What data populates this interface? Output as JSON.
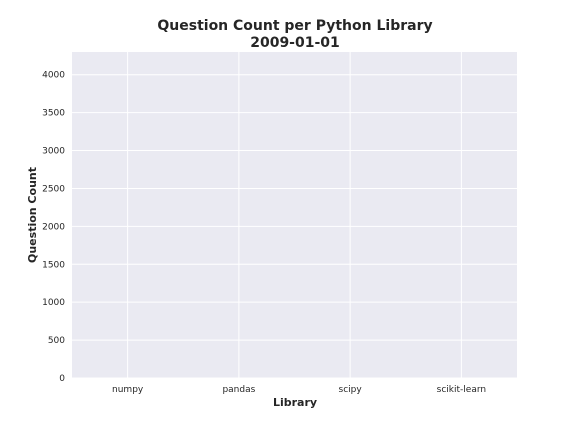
{
  "chart_data": {
    "type": "bar",
    "title": "Question Count per Python Library",
    "subtitle": "2009-01-01",
    "xlabel": "Library",
    "ylabel": "Question Count",
    "categories": [
      "numpy",
      "pandas",
      "scipy",
      "scikit-learn"
    ],
    "values": [
      0,
      0,
      0,
      0
    ],
    "ylim": [
      0,
      4300
    ],
    "yticks": [
      0,
      500,
      1000,
      1500,
      2000,
      2500,
      3000,
      3500,
      4000
    ],
    "grid": true,
    "legend": "none",
    "colors": {
      "plot_background": "#EAEAF2",
      "grid": "#FFFFFF",
      "text": "#262626",
      "bar": "#4C72B0"
    }
  }
}
